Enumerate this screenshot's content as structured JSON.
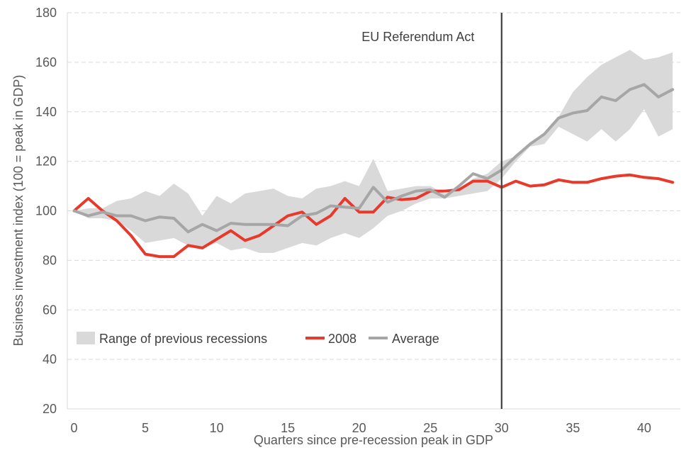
{
  "chart_data": {
    "type": "line",
    "title": "",
    "xlabel": "Quarters since pre-recession peak in GDP",
    "ylabel": "Business investment index (100 = peak in GDP)",
    "xlim": [
      -0.5,
      42.5
    ],
    "ylim": [
      20,
      180
    ],
    "xticks": [
      0,
      5,
      10,
      15,
      20,
      25,
      30,
      35,
      40
    ],
    "yticks": [
      20,
      40,
      60,
      80,
      100,
      120,
      140,
      160,
      180
    ],
    "grid": "horizontal dashed",
    "legend_position": "bottom-left",
    "x": [
      0,
      1,
      2,
      3,
      4,
      5,
      6,
      7,
      8,
      9,
      10,
      11,
      12,
      13,
      14,
      15,
      16,
      17,
      18,
      19,
      20,
      21,
      22,
      23,
      24,
      25,
      26,
      27,
      28,
      29,
      30,
      31,
      32,
      33,
      34,
      35,
      36,
      37,
      38,
      39,
      40,
      41,
      42
    ],
    "band": {
      "name": "Range of previous recessions",
      "color": "#d9d9d9",
      "upper": [
        100,
        101,
        101,
        104,
        105,
        108,
        106,
        111,
        107,
        98,
        106,
        103,
        107,
        108,
        109,
        106,
        105,
        109,
        110,
        112,
        110,
        121,
        108,
        109,
        110,
        110,
        107,
        108,
        113,
        115,
        120,
        122,
        127,
        131,
        138,
        148,
        154,
        159,
        162,
        165,
        161,
        162,
        164
      ],
      "lower": [
        100,
        97,
        97,
        96,
        92,
        87,
        88,
        89,
        86,
        85,
        87,
        84,
        85,
        83,
        83,
        85,
        87,
        86,
        89,
        91,
        89,
        93,
        98,
        100,
        103,
        105,
        105,
        106,
        107,
        108,
        113,
        120,
        126,
        127,
        134,
        131,
        128,
        133,
        128,
        133,
        141,
        130,
        133
      ]
    },
    "series": [
      {
        "name": "2008",
        "color": "#e8392b",
        "values": [
          100,
          105,
          100,
          96,
          90,
          82.5,
          81.5,
          81.5,
          86,
          85,
          88.5,
          92,
          88,
          90,
          94,
          98,
          99.5,
          94.5,
          98,
          105,
          99.5,
          99.5,
          105.5,
          104.5,
          105,
          108,
          108,
          108.5,
          112,
          112,
          109.5,
          112,
          110,
          110.5,
          112.5,
          111.5,
          111.5,
          113,
          114,
          114.5,
          113.5,
          113,
          111.5
        ]
      },
      {
        "name": "Average",
        "color": "#a6a6a6",
        "values": [
          100,
          98,
          99.5,
          98,
          98,
          96,
          97.5,
          97,
          91.5,
          94.5,
          92,
          95,
          94.5,
          94.5,
          94.5,
          94,
          98,
          99,
          102,
          101.5,
          101,
          109.5,
          103.5,
          106,
          108,
          108.5,
          105.5,
          110,
          115,
          113,
          116.5,
          122,
          127,
          131,
          137.5,
          139.5,
          140.5,
          146,
          144.5,
          149,
          151,
          146,
          149
        ]
      }
    ],
    "annotations": [
      {
        "text": "EU Referendum Act",
        "x": 30
      }
    ]
  }
}
